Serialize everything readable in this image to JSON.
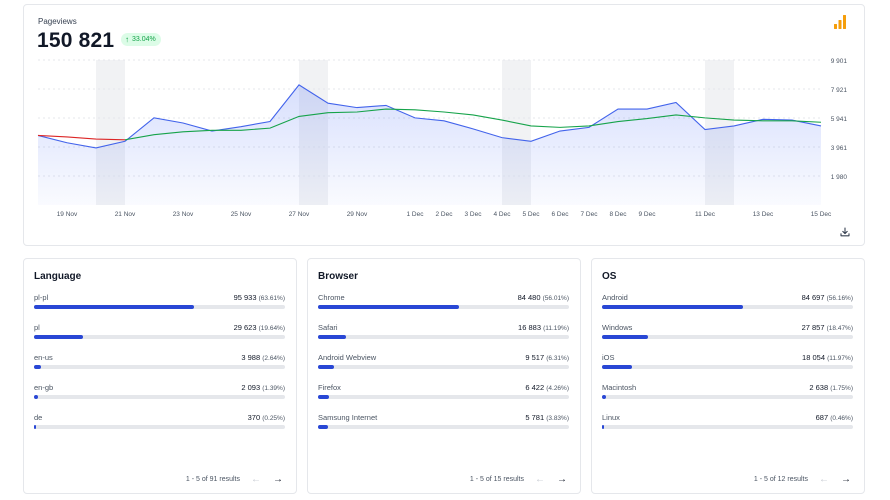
{
  "pageviews": {
    "label": "Pageviews",
    "total": "150 821",
    "change": "33.04%",
    "colors": {
      "accent": "#3b5bdb",
      "trend": "#16a34a",
      "trend_start": "#dc2626",
      "bar_icon": "#f59e0b"
    }
  },
  "chart_data": {
    "type": "line",
    "x_tick_labels": [
      "19 Nov",
      "21 Nov",
      "23 Nov",
      "25 Nov",
      "27 Nov",
      "29 Nov",
      "1 Dec",
      "2 Dec",
      "3 Dec",
      "4 Dec",
      "5 Dec",
      "6 Dec",
      "7 Dec",
      "8 Dec",
      "9 Dec",
      "11 Dec",
      "13 Dec",
      "15 Dec"
    ],
    "y_tick_labels": [
      "9 901",
      "7 921",
      "5 941",
      "3 961",
      "1 980"
    ],
    "ylim": [
      0,
      9901
    ],
    "x": [
      "18 Nov",
      "19 Nov",
      "20 Nov",
      "21 Nov",
      "22 Nov",
      "23 Nov",
      "24 Nov",
      "25 Nov",
      "26 Nov",
      "27 Nov",
      "28 Nov",
      "29 Nov",
      "30 Nov",
      "1 Dec",
      "2 Dec",
      "3 Dec",
      "4 Dec",
      "5 Dec",
      "6 Dec",
      "7 Dec",
      "8 Dec",
      "9 Dec",
      "10 Dec",
      "11 Dec",
      "12 Dec",
      "13 Dec",
      "14 Dec",
      "15 Dec"
    ],
    "series": [
      {
        "values": [
          4750,
          4250,
          3900,
          4350,
          5950,
          5600,
          5050,
          5350,
          5700,
          8200,
          6950,
          6650,
          6800,
          5950,
          5750,
          5200,
          4600,
          4350,
          5050,
          5300,
          6550,
          6550,
          7000,
          5150,
          5400,
          5850,
          5800,
          5400
        ]
      },
      {
        "values": [
          4750,
          4650,
          4500,
          4450,
          4800,
          5000,
          5100,
          5100,
          5250,
          6050,
          6300,
          6350,
          6550,
          6500,
          6350,
          6150,
          5800,
          5400,
          5300,
          5400,
          5700,
          5900,
          6150,
          5950,
          5800,
          5750,
          5750,
          5650
        ]
      }
    ],
    "weekend_bands": [
      [
        "20 Nov",
        "21 Nov"
      ],
      [
        "27 Nov",
        "28 Nov"
      ],
      [
        "4 Dec",
        "5 Dec"
      ],
      [
        "11 Dec",
        "12 Dec"
      ]
    ],
    "grid": true
  },
  "language": {
    "title": "Language",
    "rows": [
      {
        "name": "pl-pl",
        "value": "95 933",
        "pct": "(63.61%)",
        "share": 0.636
      },
      {
        "name": "pl",
        "value": "29 623",
        "pct": "(19.64%)",
        "share": 0.196
      },
      {
        "name": "en-us",
        "value": "3 988",
        "pct": "(2.64%)",
        "share": 0.026
      },
      {
        "name": "en-gb",
        "value": "2 093",
        "pct": "(1.39%)",
        "share": 0.014
      },
      {
        "name": "de",
        "value": "370",
        "pct": "(0.25%)",
        "share": 0.0025
      }
    ],
    "pager": "1 - 5 of 91 results"
  },
  "browser": {
    "title": "Browser",
    "rows": [
      {
        "name": "Chrome",
        "value": "84 480",
        "pct": "(56.01%)",
        "share": 0.56
      },
      {
        "name": "Safari",
        "value": "16 883",
        "pct": "(11.19%)",
        "share": 0.112
      },
      {
        "name": "Android Webview",
        "value": "9 517",
        "pct": "(6.31%)",
        "share": 0.063
      },
      {
        "name": "Firefox",
        "value": "6 422",
        "pct": "(4.26%)",
        "share": 0.043
      },
      {
        "name": "Samsung Internet",
        "value": "5 781",
        "pct": "(3.83%)",
        "share": 0.038
      }
    ],
    "pager": "1 - 5 of 15 results"
  },
  "os": {
    "title": "OS",
    "rows": [
      {
        "name": "Android",
        "value": "84 697",
        "pct": "(56.16%)",
        "share": 0.562
      },
      {
        "name": "Windows",
        "value": "27 857",
        "pct": "(18.47%)",
        "share": 0.185
      },
      {
        "name": "iOS",
        "value": "18 054",
        "pct": "(11.97%)",
        "share": 0.12
      },
      {
        "name": "Macintosh",
        "value": "2 638",
        "pct": "(1.75%)",
        "share": 0.0175
      },
      {
        "name": "Linux",
        "value": "687",
        "pct": "(0.46%)",
        "share": 0.0046
      }
    ],
    "pager": "1 - 5 of 12 results"
  }
}
